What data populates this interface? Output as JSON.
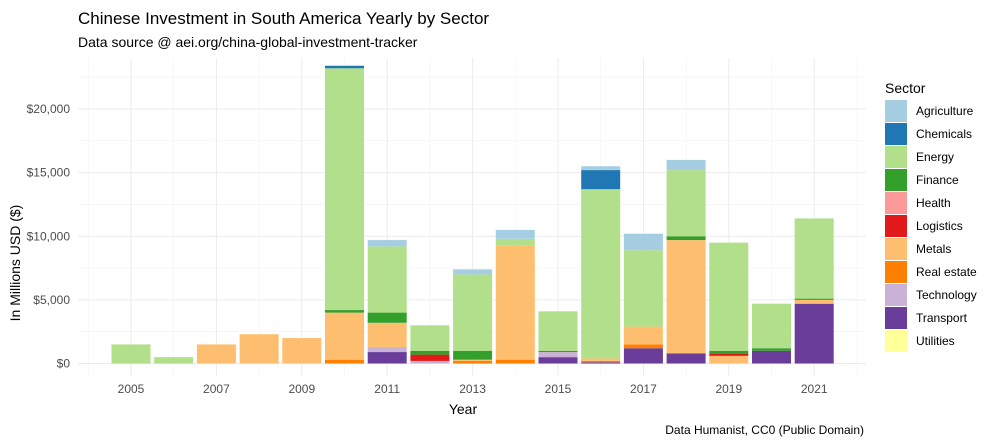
{
  "chart_data": {
    "type": "bar",
    "stacked": true,
    "title": "Chinese Investment in South America Yearly by Sector",
    "subtitle": "Data source @ aei.org/china-global-investment-tracker",
    "xlabel": "Year",
    "ylabel": "In Millions USD ($)",
    "caption": "Data Humanist, CC0 (Public Domain)",
    "legend_title": "Sector",
    "legend_position": "right",
    "grid": true,
    "ylim": [
      0,
      23500
    ],
    "xlim": [
      2004,
      2022
    ],
    "x_ticks": [
      2005,
      2007,
      2009,
      2011,
      2013,
      2015,
      2017,
      2019,
      2021
    ],
    "x_tick_labels": [
      "2005",
      "2007",
      "2009",
      "2011",
      "2013",
      "2015",
      "2017",
      "2019",
      "2021"
    ],
    "y_ticks": [
      0,
      5000,
      10000,
      15000,
      20000
    ],
    "y_tick_labels": [
      "$0",
      "$5,000",
      "$10,000",
      "$15,000",
      "$20,000"
    ],
    "categories": [
      2005,
      2006,
      2007,
      2008,
      2009,
      2010,
      2011,
      2012,
      2013,
      2014,
      2015,
      2016,
      2017,
      2018,
      2019,
      2020,
      2021
    ],
    "series": [
      {
        "name": "Transport",
        "color": "#6a3d9a",
        "values": [
          0,
          0,
          0,
          0,
          0,
          0,
          900,
          0,
          0,
          0,
          500,
          100,
          1200,
          800,
          0,
          1000,
          4700
        ]
      },
      {
        "name": "Technology",
        "color": "#cab2d6",
        "values": [
          0,
          0,
          0,
          0,
          0,
          0,
          400,
          200,
          0,
          0,
          400,
          0,
          0,
          0,
          0,
          0,
          0
        ]
      },
      {
        "name": "Real estate",
        "color": "#ff7f00",
        "values": [
          0,
          0,
          0,
          0,
          0,
          300,
          0,
          0,
          200,
          300,
          0,
          100,
          300,
          0,
          0,
          0,
          0
        ]
      },
      {
        "name": "Metals",
        "color": "#fdbf6f",
        "values": [
          0,
          0,
          1500,
          2300,
          2000,
          3700,
          1900,
          0,
          100,
          9000,
          0,
          200,
          1400,
          8900,
          600,
          0,
          300
        ]
      },
      {
        "name": "Logistics",
        "color": "#e31a1c",
        "values": [
          0,
          0,
          0,
          0,
          0,
          0,
          0,
          500,
          0,
          0,
          0,
          0,
          0,
          0,
          200,
          0,
          0
        ]
      },
      {
        "name": "Health",
        "color": "#fb9a99",
        "values": [
          0,
          0,
          0,
          0,
          0,
          0,
          0,
          0,
          0,
          0,
          0,
          0,
          0,
          0,
          0,
          0,
          0
        ]
      },
      {
        "name": "Finance",
        "color": "#33a02c",
        "values": [
          0,
          0,
          0,
          0,
          0,
          200,
          800,
          300,
          700,
          0,
          100,
          0,
          0,
          300,
          200,
          200,
          100
        ]
      },
      {
        "name": "Energy",
        "color": "#b2df8a",
        "values": [
          1500,
          500,
          0,
          0,
          0,
          19000,
          5200,
          2000,
          6000,
          500,
          3100,
          13300,
          6000,
          5200,
          8500,
          3500,
          6300
        ]
      },
      {
        "name": "Chemicals",
        "color": "#1f78b4",
        "values": [
          0,
          0,
          0,
          0,
          0,
          200,
          0,
          0,
          0,
          0,
          0,
          1500,
          0,
          0,
          0,
          0,
          0
        ]
      },
      {
        "name": "Agriculture",
        "color": "#a6cee3",
        "values": [
          0,
          0,
          0,
          0,
          0,
          0,
          500,
          0,
          400,
          700,
          0,
          300,
          1300,
          800,
          0,
          0,
          0
        ]
      },
      {
        "name": "Utilities",
        "color": "#ffff99",
        "values": [
          0,
          0,
          0,
          0,
          0,
          0,
          0,
          0,
          0,
          0,
          0,
          0,
          0,
          0,
          0,
          0,
          0
        ]
      }
    ],
    "legend_order": [
      "Agriculture",
      "Chemicals",
      "Energy",
      "Finance",
      "Health",
      "Logistics",
      "Metals",
      "Real estate",
      "Technology",
      "Transport",
      "Utilities"
    ]
  }
}
